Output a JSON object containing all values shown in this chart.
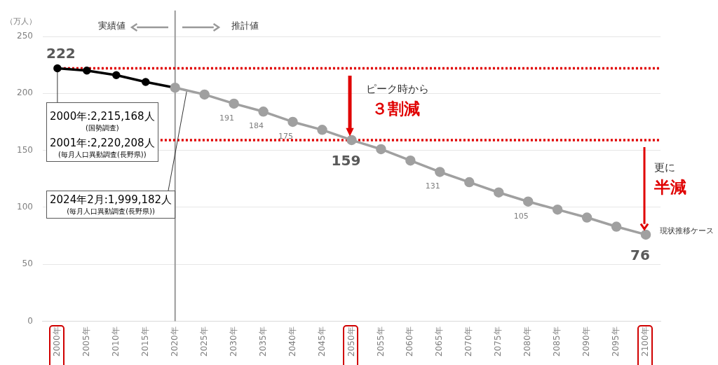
{
  "chart_data": {
    "type": "line",
    "ylabel": "（万人）",
    "categories": [
      "2000年",
      "2005年",
      "2010年",
      "2015年",
      "2020年",
      "2025年",
      "2030年",
      "2035年",
      "2040年",
      "2045年",
      "2050年",
      "2055年",
      "2060年",
      "2065年",
      "2070年",
      "2075年",
      "2080年",
      "2085年",
      "2090年",
      "2095年",
      "2100年"
    ],
    "series": [
      {
        "color": "#000000",
        "values": [
          222,
          220,
          216,
          210,
          205,
          null,
          null,
          null,
          null,
          null,
          null,
          null,
          null,
          null,
          null,
          null,
          null,
          null,
          null,
          null,
          null
        ],
        "value_labels": [
          "222",
          null,
          null,
          null,
          null,
          null,
          null,
          null,
          null,
          null,
          null,
          null,
          null,
          null,
          null,
          null,
          null,
          null,
          null,
          null,
          null
        ]
      },
      {
        "name": "現状推移ケース",
        "color": "#a0a0a0",
        "values": [
          null,
          null,
          null,
          null,
          205,
          199,
          191,
          184,
          175,
          168,
          159,
          151,
          141,
          131,
          122,
          113,
          105,
          98,
          91,
          83,
          76
        ],
        "value_labels": [
          null,
          null,
          null,
          null,
          null,
          null,
          "191",
          "184",
          "175",
          null,
          "159",
          null,
          null,
          "131",
          null,
          null,
          "105",
          null,
          null,
          null,
          "76"
        ]
      }
    ],
    "ylim": [
      0,
      250
    ],
    "yticks": [
      0,
      50,
      100,
      150,
      200,
      250
    ],
    "grid": "y",
    "legend": false,
    "marker": "circle",
    "line_style": "solid",
    "ref_lines": [
      {
        "axis": "x",
        "value": "2020年",
        "color": "#999999",
        "line_style": "solid"
      },
      {
        "axis": "y",
        "value": 222,
        "color": "#e00000",
        "line_style": "dotted"
      },
      {
        "axis": "y",
        "value": 159,
        "color": "#e00000",
        "line_style": "dotted"
      }
    ],
    "annotations": [
      "実績値",
      "推計値",
      {
        "text": "2000年:2,215,168人",
        "x": "2000年",
        "y": 222
      },
      "(国勢調査)",
      "2001年:2,220,208人",
      "(毎月人口異動調査(長野県))",
      "2024年2月:1,999,182人",
      "(毎月人口異動調査(長野県))",
      "ピーク時から",
      "３割減",
      "更に",
      "半減"
    ]
  }
}
